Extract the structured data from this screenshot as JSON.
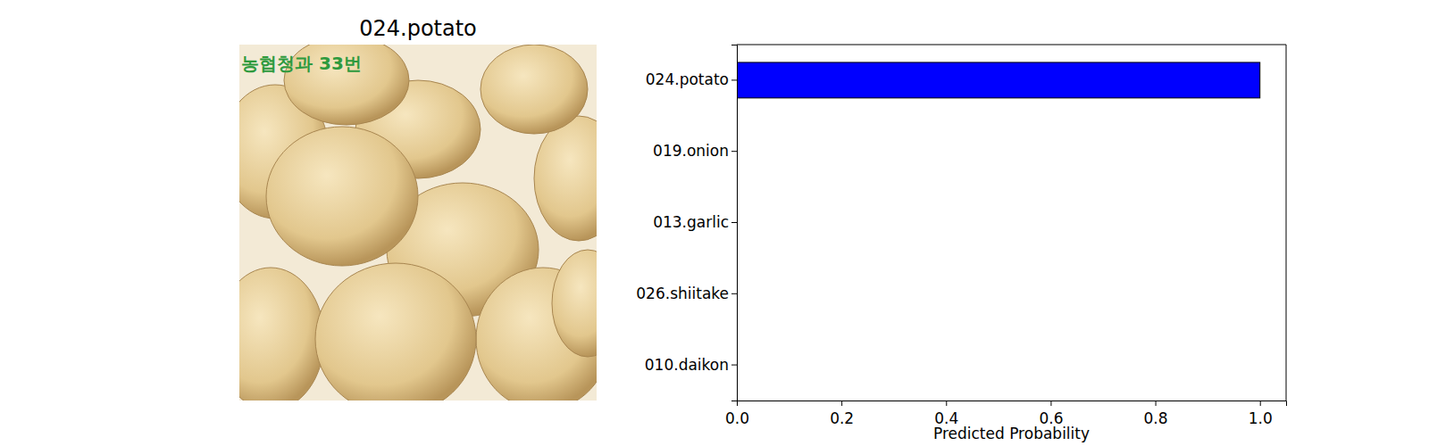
{
  "image": {
    "title": "024.potato",
    "watermark": "농협청과 33번"
  },
  "chart_data": {
    "type": "bar",
    "orientation": "horizontal",
    "categories": [
      "024.potato",
      "019.onion",
      "013.garlic",
      "026.shiitake",
      "010.daikon"
    ],
    "values": [
      1.0,
      0,
      0,
      0,
      0
    ],
    "color": "#0000ff",
    "x_label": "Predicted Probability",
    "xlim": [
      0,
      1.05
    ],
    "xticks": [
      {
        "value": 0,
        "label": "0.0"
      },
      0.2,
      0.4,
      0.6,
      0.8,
      {
        "value": 1,
        "label": "1.0"
      }
    ],
    "grid": false
  }
}
